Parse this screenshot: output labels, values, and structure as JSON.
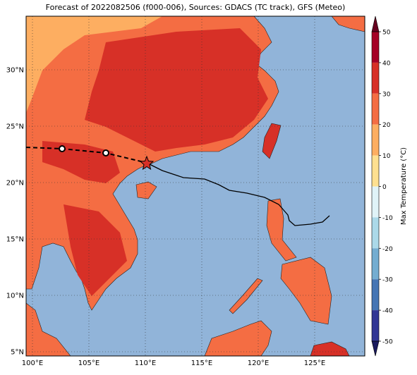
{
  "title": "Forecast of 2022082506 (f000-006), Sources: GDACS (TC track), GFS (Meteo)",
  "lon_ticks": [
    {
      "value": 100,
      "label": "100°E"
    },
    {
      "value": 105,
      "label": "105°E"
    },
    {
      "value": 110,
      "label": "110°E"
    },
    {
      "value": 115,
      "label": "115°E"
    },
    {
      "value": 120,
      "label": "120°E"
    },
    {
      "value": 125,
      "label": "125°E"
    }
  ],
  "lat_ticks": [
    {
      "value": 30,
      "label": "30°N"
    },
    {
      "value": 25,
      "label": "25°N"
    },
    {
      "value": 20,
      "label": "20°N"
    },
    {
      "value": 15,
      "label": "15°N"
    },
    {
      "value": 10,
      "label": "10°N"
    },
    {
      "value": 5,
      "label": "5°N"
    }
  ],
  "colorbar": {
    "label": "Max Temperature (°C)",
    "ticks": [
      50,
      40,
      30,
      20,
      10,
      0,
      -10,
      -20,
      -30,
      -40,
      -50
    ],
    "colors": [
      "#a50026",
      "#d73027",
      "#f46d43",
      "#fdae61",
      "#fee090",
      "#e0f3f8",
      "#abd9e9",
      "#74add1",
      "#4575b4",
      "#313695"
    ]
  }
}
